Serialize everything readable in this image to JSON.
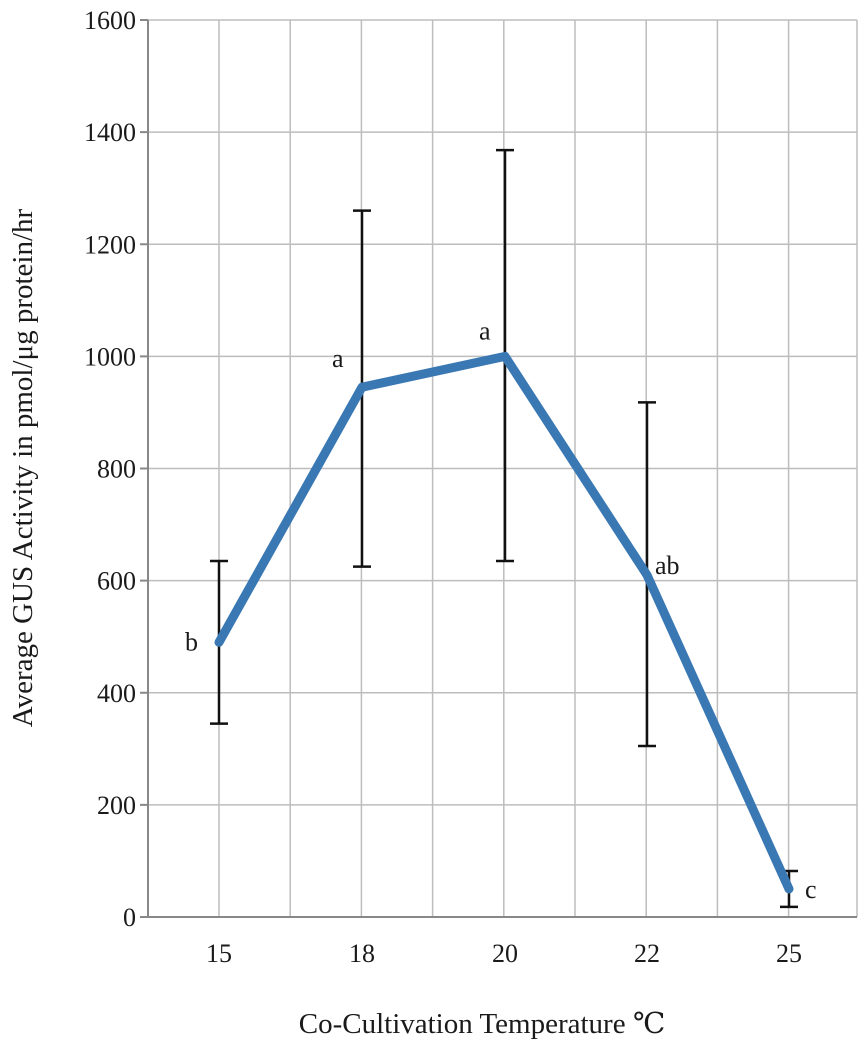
{
  "chart_data": {
    "type": "line",
    "title": "",
    "xlabel": "Co-Cultivation Temperature ℃",
    "ylabel": "Average GUS Activity in pmol/μg protein/hr",
    "categories": [
      "15",
      "18",
      "20",
      "22",
      "25"
    ],
    "series": [
      {
        "values": [
          490,
          945,
          1000,
          610,
          50
        ],
        "error_low": [
          345,
          625,
          635,
          305,
          18
        ],
        "error_high": [
          635,
          1260,
          1368,
          918,
          82
        ],
        "significance": [
          "b",
          "a",
          "a",
          "ab",
          "c"
        ],
        "color": "#3a78b4"
      }
    ],
    "ylim": [
      0,
      1600
    ],
    "yticks": [
      0,
      200,
      400,
      600,
      800,
      1000,
      1200,
      1400,
      1600
    ],
    "grid": true,
    "legend": "none"
  }
}
